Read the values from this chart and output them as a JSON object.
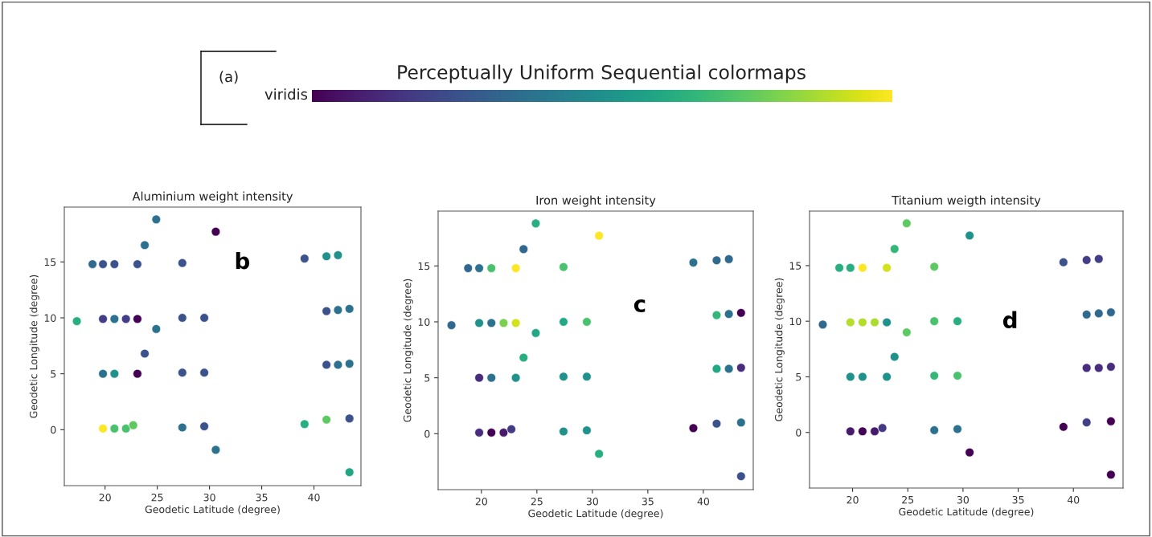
{
  "chart_data": [
    {
      "type": "other",
      "title": "Perceptually Uniform Sequential colormaps",
      "annotations": [
        "(a)",
        "viridis"
      ]
    },
    {
      "type": "scatter",
      "title": "Aluminium weight intensity",
      "xlabel": "Geodetic Latitude (degree)",
      "ylabel": "Geodetic Longitude (degree)",
      "marker": "circle",
      "xlim": [
        16.1,
        44.5
      ],
      "ylim": [
        -5.0,
        19.9
      ],
      "xticks": [
        20,
        25,
        30,
        35,
        40
      ],
      "yticks": [
        0,
        5,
        10,
        15
      ],
      "annotations": [
        "b"
      ],
      "x": [
        17.3,
        18.8,
        19.8,
        20.9,
        23.1,
        19.8,
        20.9,
        22.0,
        23.1,
        19.8,
        20.9,
        23.1,
        19.8,
        20.9,
        22.0,
        22.7,
        23.8,
        24.9,
        24.9,
        23.8,
        27.4,
        27.4,
        27.4,
        27.4,
        29.5,
        29.5,
        29.5,
        30.6,
        30.6,
        39.1,
        41.2,
        42.3,
        41.2,
        42.3,
        43.4,
        41.2,
        42.3,
        43.4,
        39.1,
        41.2,
        43.4,
        43.4
      ],
      "values": [
        9.7,
        14.8,
        14.8,
        14.8,
        14.8,
        9.9,
        9.9,
        9.9,
        9.9,
        5.0,
        5.0,
        5.0,
        0.1,
        0.1,
        0.1,
        0.4,
        16.5,
        18.8,
        9.0,
        6.8,
        14.9,
        10.0,
        5.1,
        0.2,
        10.0,
        5.1,
        0.3,
        17.7,
        -1.8,
        15.3,
        15.5,
        15.6,
        10.6,
        10.7,
        10.8,
        5.8,
        5.8,
        5.9,
        0.5,
        0.9,
        1.0,
        -3.8
      ],
      "colors": [
        "#28ae80",
        "#31688e",
        "#3b528b",
        "#3b528b",
        "#3b528b",
        "#433e85",
        "#2c728e",
        "#433e85",
        "#440154",
        "#2c728e",
        "#21918c",
        "#440154",
        "#fde725",
        "#4ac16d",
        "#4ac16d",
        "#5ec962",
        "#2c728e",
        "#2c728e",
        "#2c728e",
        "#3b528b",
        "#3b528b",
        "#3b528b",
        "#3b528b",
        "#2c728e",
        "#3b528b",
        "#3b528b",
        "#3b528b",
        "#440154",
        "#2c728e",
        "#3b528b",
        "#21918c",
        "#21918c",
        "#3b528b",
        "#2c728e",
        "#2c728e",
        "#3b528b",
        "#2c728e",
        "#2c728e",
        "#28ae80",
        "#5ec962",
        "#3b528b",
        "#21a585"
      ]
    },
    {
      "type": "scatter",
      "title": "Iron weight intensity",
      "xlabel": "Geodetic Latitude (degree)",
      "ylabel": "Geodetic Longitude (degree)",
      "marker": "circle",
      "xlim": [
        16.1,
        44.5
      ],
      "ylim": [
        -5.0,
        19.9
      ],
      "xticks": [
        20,
        25,
        30,
        35,
        40
      ],
      "yticks": [
        0,
        5,
        10,
        15
      ],
      "annotations": [
        "c"
      ],
      "x": [
        17.3,
        18.8,
        19.8,
        20.9,
        23.1,
        19.8,
        20.9,
        22.0,
        23.1,
        19.8,
        20.9,
        23.1,
        19.8,
        20.9,
        22.0,
        22.7,
        23.8,
        24.9,
        24.9,
        23.8,
        27.4,
        27.4,
        27.4,
        27.4,
        29.5,
        29.5,
        29.5,
        30.6,
        30.6,
        39.1,
        41.2,
        42.3,
        41.2,
        42.3,
        43.4,
        41.2,
        42.3,
        43.4,
        39.1,
        41.2,
        43.4,
        43.4
      ],
      "values": [
        9.7,
        14.8,
        14.8,
        14.8,
        14.8,
        9.9,
        9.9,
        9.9,
        9.9,
        5.0,
        5.0,
        5.0,
        0.1,
        0.1,
        0.1,
        0.4,
        16.5,
        18.8,
        9.0,
        6.8,
        14.9,
        10.0,
        5.1,
        0.2,
        10.0,
        5.1,
        0.3,
        17.7,
        -1.8,
        15.3,
        15.5,
        15.6,
        10.6,
        10.7,
        10.8,
        5.8,
        5.8,
        5.9,
        0.5,
        0.9,
        1.0,
        -3.8
      ],
      "colors": [
        "#31688e",
        "#31688e",
        "#2c728e",
        "#4ac16d",
        "#fde725",
        "#21918c",
        "#2c728e",
        "#7ad151",
        "#d2e21b",
        "#472d7b",
        "#2c728e",
        "#21918c",
        "#472d7b",
        "#440154",
        "#481a6c",
        "#443983",
        "#31688e",
        "#28ae80",
        "#22a884",
        "#28ae80",
        "#4ac16d",
        "#22a884",
        "#21918c",
        "#21918c",
        "#4ac16d",
        "#21918c",
        "#21918c",
        "#fde725",
        "#28ae80",
        "#2c728e",
        "#31688e",
        "#31688e",
        "#35b779",
        "#2c728e",
        "#440154",
        "#22a884",
        "#2c728e",
        "#472d7b",
        "#440154",
        "#3b528b",
        "#2c728e",
        "#3b528b"
      ]
    },
    {
      "type": "scatter",
      "title": "Titanium weigth intensity",
      "xlabel": "Geodetic Latitude (degree)",
      "ylabel": "Geodetic Longitude (degree)",
      "marker": "circle",
      "xlim": [
        16.1,
        44.5
      ],
      "ylim": [
        -5.0,
        19.9
      ],
      "xticks": [
        20,
        25,
        30,
        35,
        40
      ],
      "yticks": [
        0,
        5,
        10,
        15
      ],
      "annotations": [
        "d"
      ],
      "x": [
        17.3,
        18.8,
        19.8,
        20.9,
        23.1,
        19.8,
        20.9,
        22.0,
        23.1,
        19.8,
        20.9,
        23.1,
        19.8,
        20.9,
        22.0,
        22.7,
        23.8,
        24.9,
        24.9,
        23.8,
        27.4,
        27.4,
        27.4,
        27.4,
        29.5,
        29.5,
        29.5,
        30.6,
        30.6,
        39.1,
        41.2,
        42.3,
        41.2,
        42.3,
        43.4,
        41.2,
        42.3,
        43.4,
        39.1,
        41.2,
        43.4,
        43.4
      ],
      "values": [
        9.7,
        14.8,
        14.8,
        14.8,
        14.8,
        9.9,
        9.9,
        9.9,
        9.9,
        5.0,
        5.0,
        5.0,
        0.1,
        0.1,
        0.1,
        0.4,
        16.5,
        18.8,
        9.0,
        6.8,
        14.9,
        10.0,
        5.1,
        0.2,
        10.0,
        5.1,
        0.3,
        17.7,
        -1.8,
        15.3,
        15.5,
        15.6,
        10.6,
        10.7,
        10.8,
        5.8,
        5.8,
        5.9,
        0.5,
        0.9,
        1.0,
        -3.8
      ],
      "colors": [
        "#31688e",
        "#28ae80",
        "#28ae80",
        "#fde725",
        "#d2e21b",
        "#b5de2b",
        "#b5de2b",
        "#addc30",
        "#21918c",
        "#21918c",
        "#21918c",
        "#21918c",
        "#481a6c",
        "#440154",
        "#481a6c",
        "#443983",
        "#35b779",
        "#5ec962",
        "#5ec962",
        "#21918c",
        "#5ec962",
        "#4ac16d",
        "#35b779",
        "#2c728e",
        "#28ae80",
        "#4ac16d",
        "#2c728e",
        "#21918c",
        "#440154",
        "#3b528b",
        "#433e85",
        "#433e85",
        "#31688e",
        "#31688e",
        "#31688e",
        "#472d7b",
        "#472d7b",
        "#472d7b",
        "#440154",
        "#433e85",
        "#440154",
        "#440154"
      ]
    }
  ]
}
